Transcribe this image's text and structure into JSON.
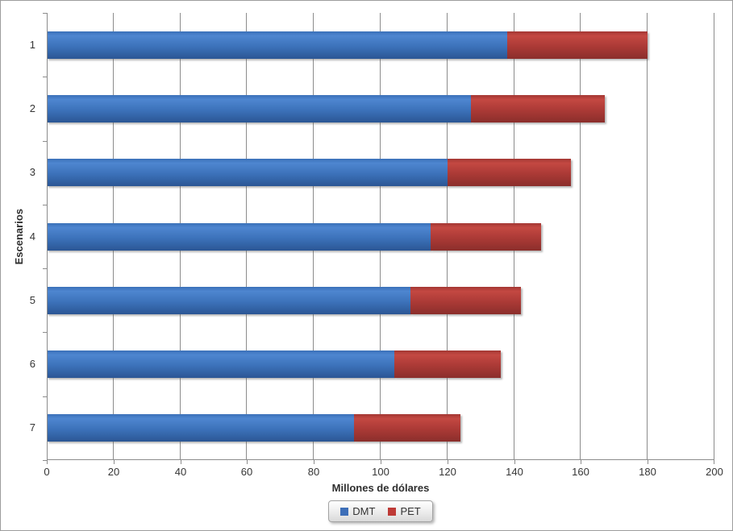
{
  "chart_data": {
    "type": "bar",
    "orientation": "horizontal",
    "stacked": true,
    "title": "",
    "xlabel": "Millones de dólares",
    "ylabel": "Escenarios",
    "categories": [
      "1",
      "2",
      "3",
      "4",
      "5",
      "6",
      "7"
    ],
    "series": [
      {
        "name": "DMT",
        "color": "#3e6fb8",
        "gradient_top": "#4e86d0",
        "gradient_bottom": "#2b5694",
        "values": [
          138,
          127,
          120,
          115,
          109,
          104,
          92
        ]
      },
      {
        "name": "PET",
        "color": "#be3a36",
        "gradient_top": "#c44842",
        "gradient_bottom": "#8b2e2b",
        "values": [
          42,
          40,
          37,
          33,
          33,
          32,
          32
        ]
      }
    ],
    "totals": [
      180,
      167,
      157,
      148,
      142,
      136,
      124
    ],
    "xlim": [
      0,
      200
    ],
    "xticks": [
      0,
      20,
      40,
      60,
      80,
      100,
      120,
      140,
      160,
      180,
      200
    ],
    "grid": "vertical",
    "gridline_color": "#8c8c8c",
    "axis_color": "#8c8c8c",
    "text_color": "#353535",
    "legend_position": "bottom"
  }
}
